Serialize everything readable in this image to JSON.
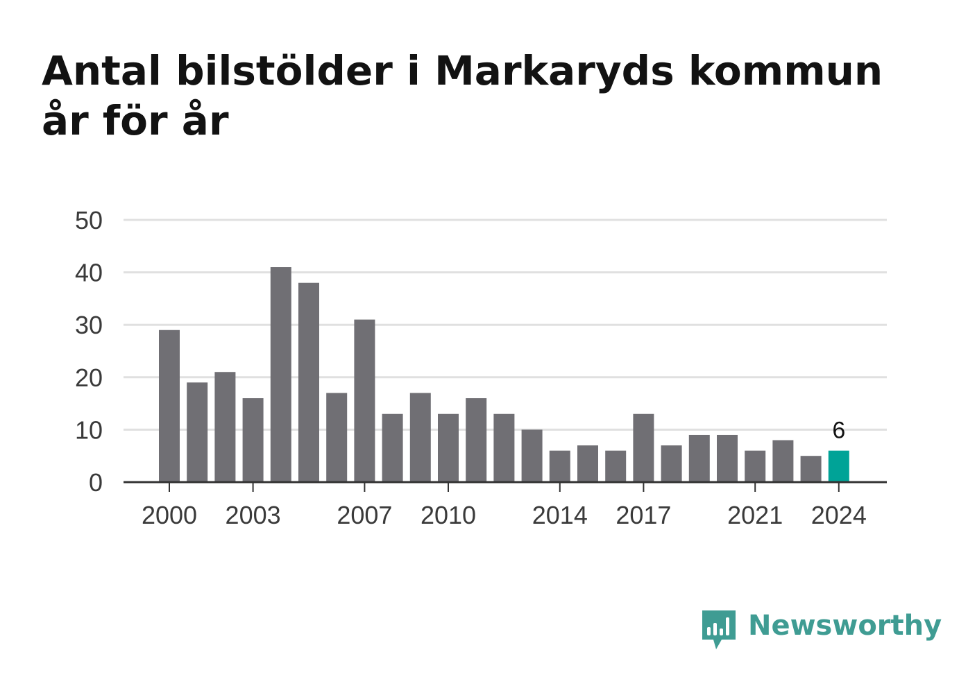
{
  "title": "Antal bilstölder i Markaryds kommun år för år",
  "chart_data": {
    "type": "bar",
    "categories": [
      2000,
      2001,
      2002,
      2003,
      2004,
      2005,
      2006,
      2007,
      2008,
      2009,
      2010,
      2011,
      2012,
      2013,
      2014,
      2015,
      2016,
      2017,
      2018,
      2019,
      2020,
      2021,
      2022,
      2023,
      2024
    ],
    "values": [
      29,
      19,
      21,
      16,
      41,
      38,
      17,
      31,
      13,
      17,
      13,
      16,
      13,
      10,
      6,
      7,
      6,
      13,
      7,
      9,
      9,
      6,
      8,
      5,
      6
    ],
    "x_tick_labels": [
      "2000",
      "2003",
      "2007",
      "2010",
      "2014",
      "2017",
      "2021",
      "2024"
    ],
    "y_ticks": [
      0,
      10,
      20,
      30,
      40,
      50
    ],
    "ylim": [
      0,
      50
    ],
    "grid": true,
    "highlight": {
      "category": 2024,
      "label": "6"
    },
    "colors": {
      "bar": "#706f74",
      "highlight": "#00a397",
      "grid": "#e0e0e0",
      "axis": "#333333"
    }
  },
  "brand": {
    "name": "Newsworthy",
    "color": "#3f9c93"
  }
}
